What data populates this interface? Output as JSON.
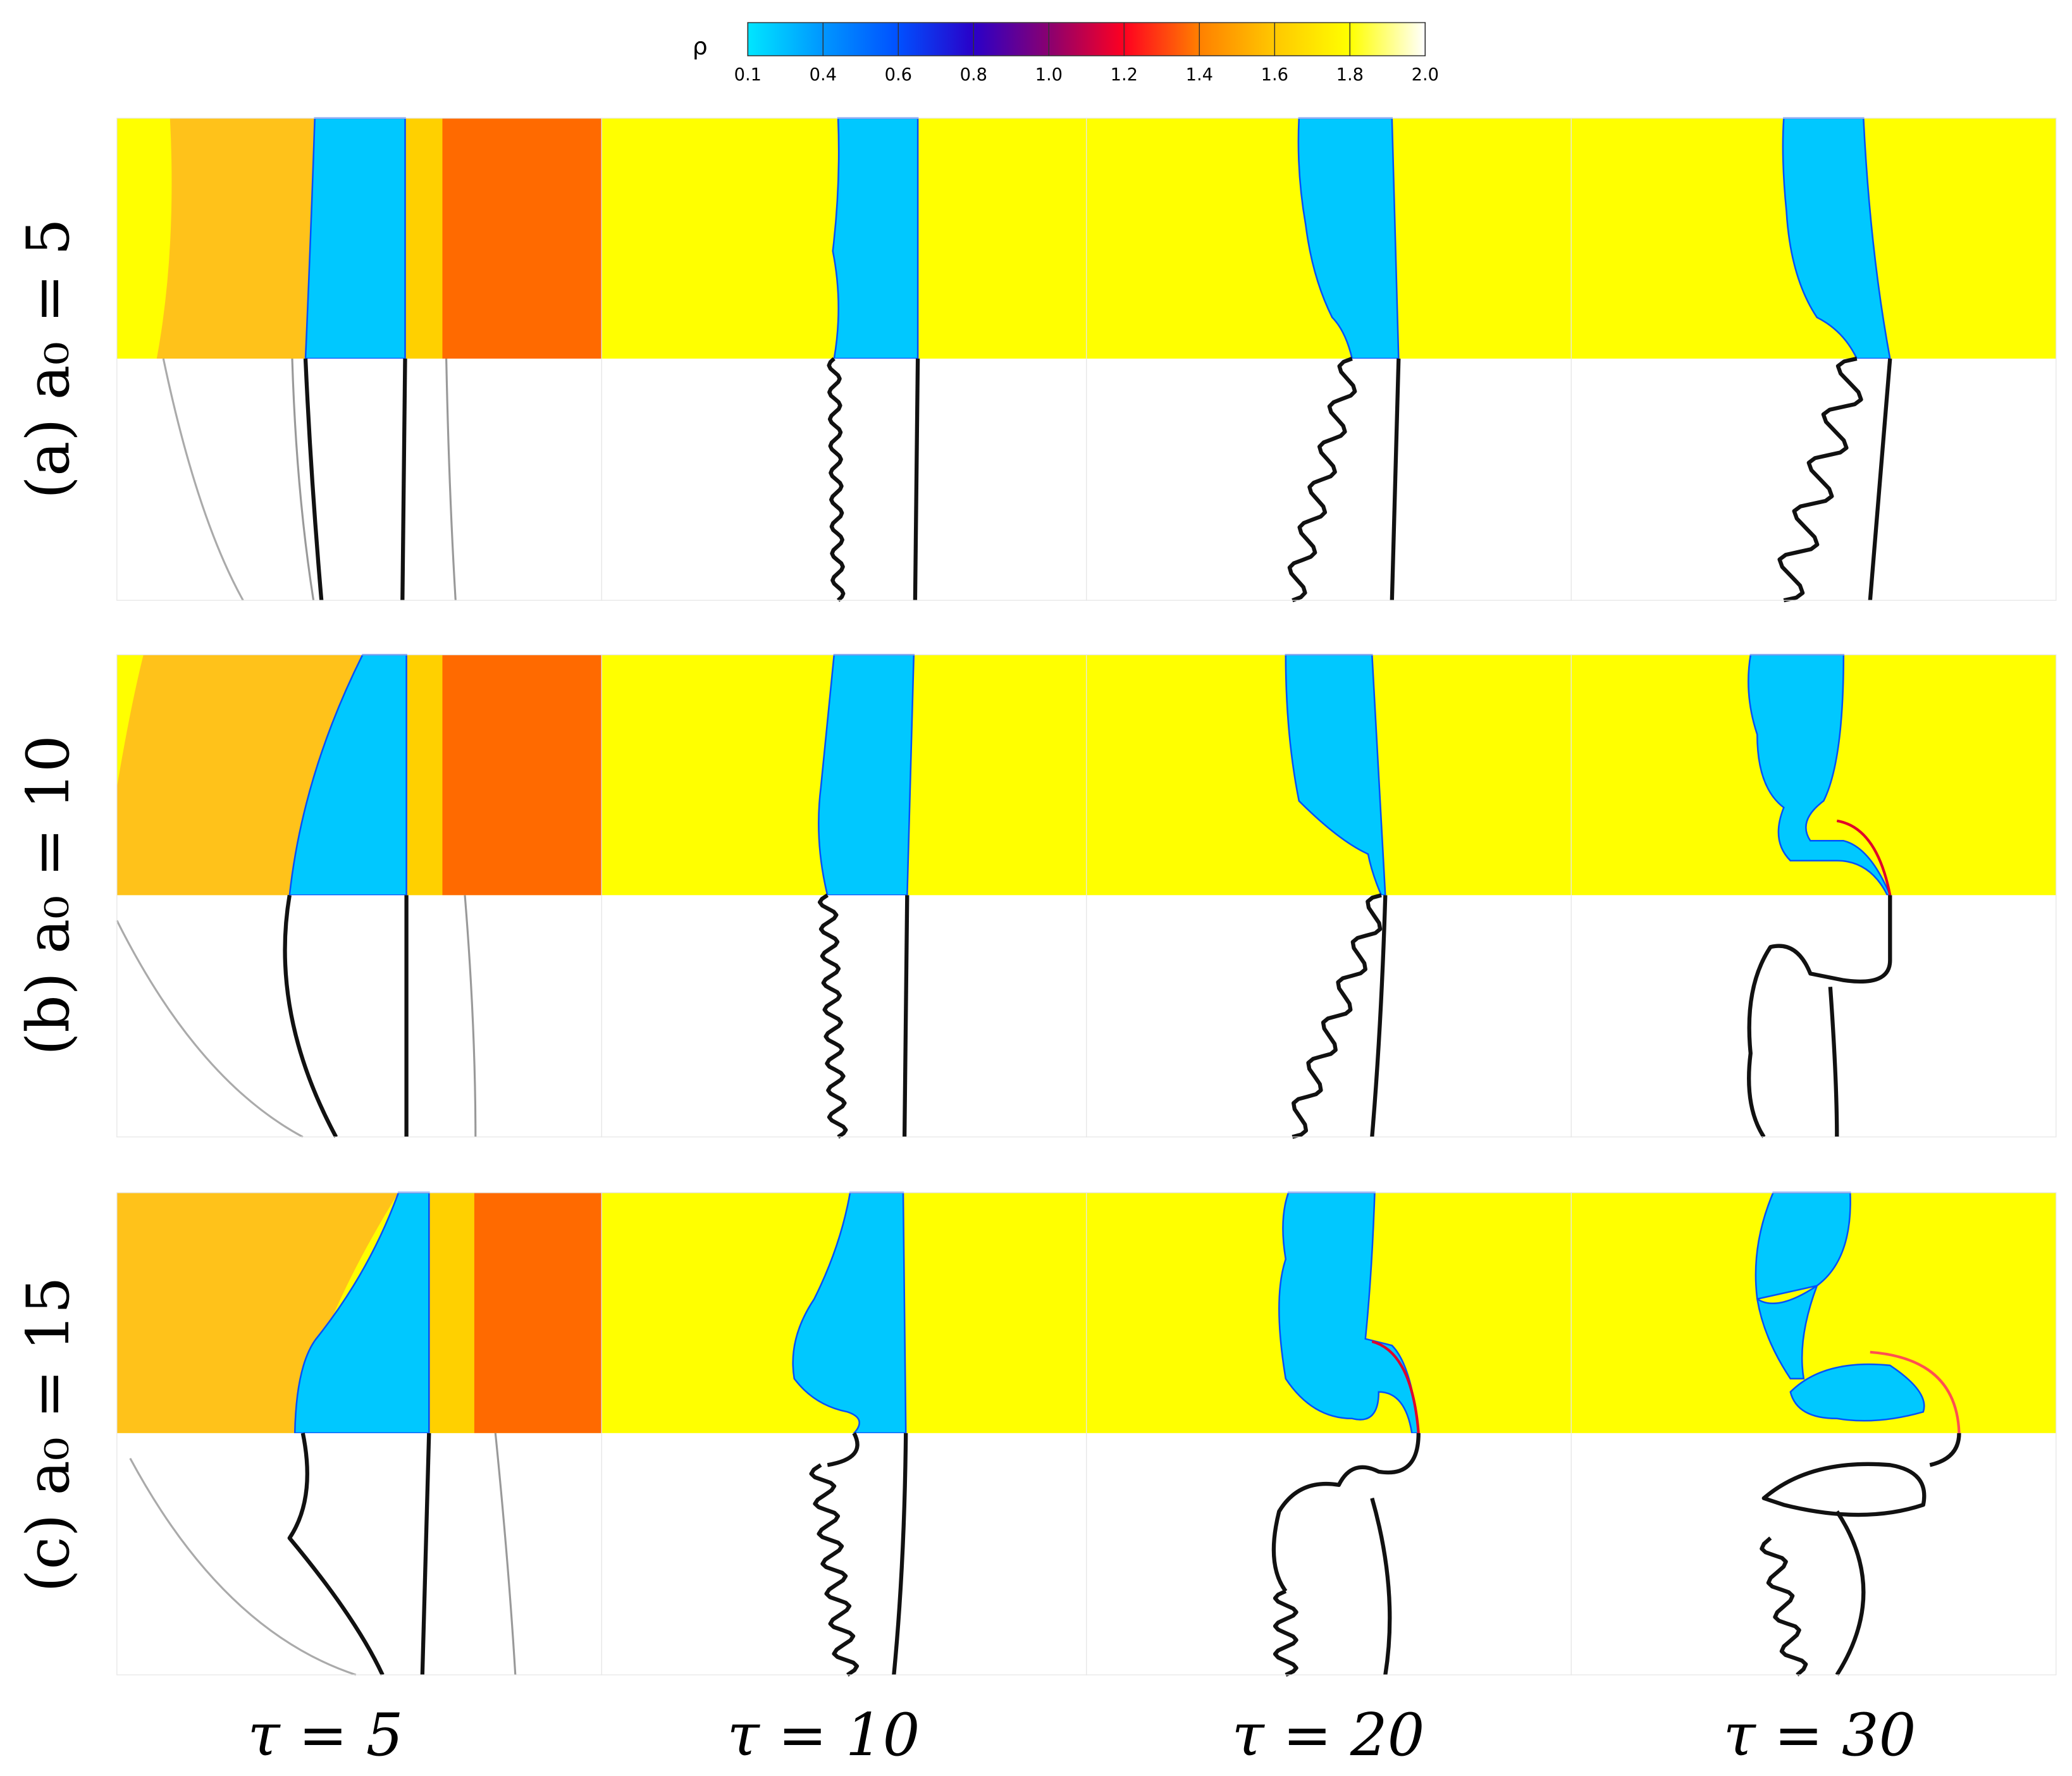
{
  "colorbar": {
    "label": "ρ",
    "ticks": [
      0.1,
      0.4,
      0.6,
      0.8,
      {
        "value": 1,
        "label": "1.0"
      },
      1.2,
      1.4,
      1.6,
      1.8,
      {
        "value": 2,
        "label": "2.0"
      }
    ],
    "colors": [
      "#00e6ff",
      "#0096ff",
      "#0050ff",
      "#2a00c8",
      "#8a0070",
      "#ff0020",
      "#ff8000",
      "#ffc800",
      "#ffff00",
      "#ffffff"
    ]
  },
  "row_labels": [
    "(a) a₀ = 5",
    "(b) a₀ = 10",
    "(c) a₀ = 15"
  ],
  "column_labels": [
    "τ = 5",
    "τ = 10",
    "τ = 20",
    "τ = 30"
  ]
}
